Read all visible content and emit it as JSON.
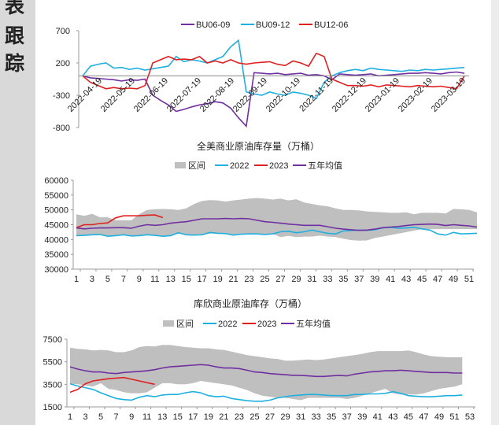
{
  "sidebar": {
    "chars": [
      "表",
      "跟",
      "踪"
    ]
  },
  "chart_data": [
    {
      "type": "line",
      "title": "",
      "legend": [
        "BU06-09",
        "BU09-12",
        "BU12-06"
      ],
      "legend_position": "top",
      "ylim": [
        -800,
        700
      ],
      "yticks": [
        "700",
        "200",
        "-300",
        "-800"
      ],
      "ytick_values": [
        700,
        200,
        -300,
        -800
      ],
      "xtick_labels": [
        "2022-04-19",
        "2022-05-19",
        "2022-06-19",
        "2022-07-19",
        "2022-08-19",
        "2022-09-19",
        "2022-10-19",
        "2022-11-19",
        "2022-12-19",
        "2023-01-19",
        "2023-02-19",
        "2023-03-19"
      ],
      "colors": [
        "#7030a0",
        "#1fb0e0",
        "#e02020"
      ],
      "series": [
        {
          "name": "BU06-09",
          "values": [
            0,
            -30,
            -40,
            -50,
            -60,
            -80,
            -60,
            -70,
            -50,
            -300,
            -380,
            -450,
            -550,
            -520,
            -480,
            -450,
            -430,
            -400,
            -420,
            -500,
            -650,
            -780,
            50,
            40,
            30,
            40,
            20,
            30,
            40,
            10,
            20,
            0,
            -60,
            30,
            20,
            10,
            20,
            30,
            0,
            10,
            20,
            30,
            40,
            40,
            50,
            40,
            30,
            50,
            60,
            40
          ]
        },
        {
          "name": "BU09-12",
          "values": [
            0,
            150,
            180,
            200,
            120,
            130,
            100,
            120,
            90,
            110,
            130,
            150,
            300,
            220,
            250,
            230,
            200,
            250,
            300,
            450,
            550,
            -250,
            -280,
            -300,
            -250,
            -280,
            -300,
            -250,
            -270,
            -300,
            -350,
            -100,
            0,
            50,
            80,
            100,
            80,
            120,
            100,
            90,
            80,
            70,
            90,
            80,
            100,
            90,
            100,
            110,
            120,
            130
          ]
        },
        {
          "name": "BU12-06",
          "values": [
            0,
            -100,
            -150,
            -200,
            -180,
            -200,
            -190,
            -200,
            -150,
            200,
            250,
            300,
            250,
            260,
            250,
            300,
            200,
            230,
            200,
            250,
            200,
            180,
            200,
            210,
            220,
            180,
            160,
            230,
            200,
            150,
            350,
            300,
            -50,
            -100,
            -150,
            -150,
            -160,
            -140,
            -170,
            -140,
            -150,
            -160,
            -170,
            -150,
            -160,
            -170,
            -160,
            -180,
            -200,
            0
          ]
        }
      ]
    },
    {
      "type": "area+line",
      "title": "全美商业原油库存量（万桶）",
      "legend": [
        "区间",
        "2022",
        "2023",
        "五年均值"
      ],
      "legend_position": "top",
      "ylim": [
        30000,
        60000
      ],
      "yticks": [
        "60000",
        "55000",
        "50000",
        "45000",
        "40000",
        "35000",
        "30000"
      ],
      "ytick_values": [
        60000,
        55000,
        50000,
        45000,
        40000,
        35000,
        30000
      ],
      "x": "weeks 1-52",
      "xtick_labels": [
        "1",
        "3",
        "5",
        "7",
        "9",
        "11",
        "13",
        "15",
        "17",
        "19",
        "21",
        "23",
        "25",
        "27",
        "29",
        "31",
        "33",
        "35",
        "37",
        "39",
        "41",
        "43",
        "45",
        "47",
        "49",
        "51"
      ],
      "colors": {
        "band": "#bfbfbf",
        "2022": "#1fb0e0",
        "2023": "#e02020",
        "avg": "#7030a0"
      },
      "band_max": [
        48500,
        48000,
        48700,
        47500,
        47500,
        46500,
        46500,
        46500,
        48500,
        50000,
        50200,
        50300,
        50200,
        50000,
        50500,
        52000,
        53000,
        53300,
        53200,
        52800,
        53200,
        53500,
        53800,
        54000,
        53800,
        53500,
        53800,
        53200,
        53600,
        52500,
        52000,
        51500,
        51200,
        50500,
        50000,
        50000,
        49800,
        49500,
        49300,
        49200,
        49000,
        49000,
        49200,
        48500,
        49000,
        49000,
        49000,
        48800,
        50300,
        50200,
        50000,
        49200
      ],
      "band_min": [
        41300,
        41400,
        41600,
        41700,
        41100,
        41300,
        41600,
        41200,
        41300,
        41600,
        41400,
        41100,
        41300,
        42000,
        41600,
        41500,
        41600,
        42000,
        42000,
        42000,
        41500,
        41800,
        41900,
        41900,
        41700,
        41900,
        40800,
        41200,
        40800,
        41000,
        41000,
        41300,
        41000,
        40800,
        40300,
        39800,
        39600,
        39700,
        40500,
        41000,
        41500,
        42000,
        42500,
        43000,
        43500,
        43500,
        43500,
        43500,
        43500,
        43500,
        43500,
        43500
      ],
      "series": [
        {
          "name": "2022",
          "values": [
            41300,
            41400,
            41600,
            41700,
            41100,
            41300,
            41600,
            41200,
            41300,
            41600,
            41400,
            41100,
            41300,
            42300,
            41600,
            41500,
            41600,
            42400,
            42100,
            42000,
            41500,
            41800,
            41900,
            41900,
            41700,
            41900,
            42600,
            42800,
            42300,
            42600,
            43200,
            42600,
            42100,
            41900,
            42900,
            43000,
            43200,
            43100,
            43300,
            43900,
            44100,
            43800,
            43900,
            44100,
            43600,
            43200,
            41900,
            41500,
            42400,
            41900,
            42000,
            42100
          ]
        },
        {
          "name": "2023",
          "values": [
            44000,
            45000,
            45000,
            45400,
            45600,
            47300,
            48000,
            48000,
            48000,
            48200,
            48300,
            47400
          ]
        },
        {
          "name": "五年均值",
          "values": [
            43900,
            43600,
            43800,
            43900,
            43900,
            44000,
            44000,
            43800,
            44500,
            45000,
            44800,
            45000,
            45500,
            45800,
            46000,
            46500,
            47000,
            47000,
            47000,
            47100,
            47000,
            47100,
            47000,
            46500,
            46000,
            45800,
            45500,
            45200,
            45000,
            44800,
            44800,
            44800,
            44300,
            43800,
            43500,
            43300,
            43100,
            43200,
            43500,
            44000,
            44200,
            44400,
            44700,
            45000,
            45100,
            45200,
            45100,
            44700,
            45000,
            44800,
            44600,
            44200
          ]
        }
      ]
    },
    {
      "type": "area+line",
      "title": "库欣商业原油库存（万桶）",
      "legend": [
        "区间",
        "2022",
        "2023",
        "五年均值"
      ],
      "legend_position": "top",
      "ylim": [
        1500,
        7500
      ],
      "yticks": [
        "7500",
        "5500",
        "3500",
        "1500"
      ],
      "ytick_values": [
        7500,
        5500,
        3500,
        1500
      ],
      "x": "weeks 1-53",
      "xtick_labels": [
        "1",
        "3",
        "5",
        "7",
        "9",
        "11",
        "13",
        "15",
        "17",
        "19",
        "21",
        "23",
        "25",
        "27",
        "29",
        "31",
        "33",
        "35",
        "37",
        "39",
        "41",
        "43",
        "45",
        "47",
        "49",
        "51",
        "53"
      ],
      "colors": {
        "band": "#bfbfbf",
        "2022": "#1fb0e0",
        "2023": "#e02020",
        "avg": "#7030a0"
      },
      "band_max": [
        6750,
        6650,
        6600,
        6500,
        6550,
        6500,
        6350,
        6350,
        6500,
        6800,
        6900,
        6850,
        7000,
        7000,
        6900,
        6800,
        6750,
        6700,
        6700,
        6600,
        6550,
        6400,
        6250,
        6100,
        6000,
        5900,
        5800,
        5750,
        5600,
        5600,
        5650,
        5700,
        5650,
        5700,
        5800,
        5900,
        6000,
        6100,
        6200,
        6350,
        6450,
        6450,
        6450,
        6450,
        6500,
        6350,
        6150,
        6000,
        5950,
        5900,
        5900,
        5900
      ],
      "band_min": [
        3550,
        3500,
        3400,
        3300,
        3600,
        3100,
        3000,
        2800,
        2700,
        2700,
        2800,
        3200,
        3600,
        3600,
        3500,
        3500,
        3600,
        3800,
        3700,
        3600,
        3500,
        3400,
        3200,
        3000,
        2700,
        2500,
        2400,
        2300,
        2300,
        2200,
        2100,
        2300,
        2300,
        2300,
        2300,
        2300,
        2200,
        2300,
        2500,
        2700,
        2900,
        3100,
        2700,
        2600,
        2600,
        2600,
        2700,
        2900,
        3100,
        3200,
        3300,
        3500
      ],
      "series": [
        {
          "name": "2022",
          "values": [
            3550,
            3350,
            3200,
            3050,
            2750,
            2500,
            2250,
            2150,
            2100,
            2350,
            2500,
            2400,
            2550,
            2600,
            2600,
            2750,
            2850,
            2750,
            2500,
            2400,
            2450,
            2250,
            2150,
            2050,
            2000,
            2000,
            2100,
            2300,
            2400,
            2500,
            2550,
            2600,
            2600,
            2550,
            2500,
            2500,
            2500,
            2600,
            2600,
            2650,
            2650,
            2700,
            2850,
            2700,
            2500,
            2450,
            2400,
            2400,
            2450,
            2500,
            2500,
            2550
          ]
        },
        {
          "name": "2023",
          "values": [
            2800,
            3050,
            3550,
            3800,
            3900,
            4000,
            4050,
            4100,
            3950,
            3800,
            3650,
            3500
          ]
        },
        {
          "name": "五年均值",
          "values": [
            5050,
            4850,
            4700,
            4600,
            4600,
            4500,
            4450,
            4550,
            4600,
            4650,
            4700,
            4800,
            4950,
            5050,
            5100,
            5150,
            5200,
            5250,
            5200,
            5050,
            4950,
            4950,
            4900,
            4750,
            4600,
            4550,
            4450,
            4400,
            4350,
            4300,
            4300,
            4250,
            4200,
            4200,
            4250,
            4300,
            4250,
            4400,
            4500,
            4600,
            4650,
            4700,
            4700,
            4750,
            4700,
            4650,
            4600,
            4550,
            4550,
            4550,
            4500,
            4500
          ]
        }
      ]
    }
  ]
}
